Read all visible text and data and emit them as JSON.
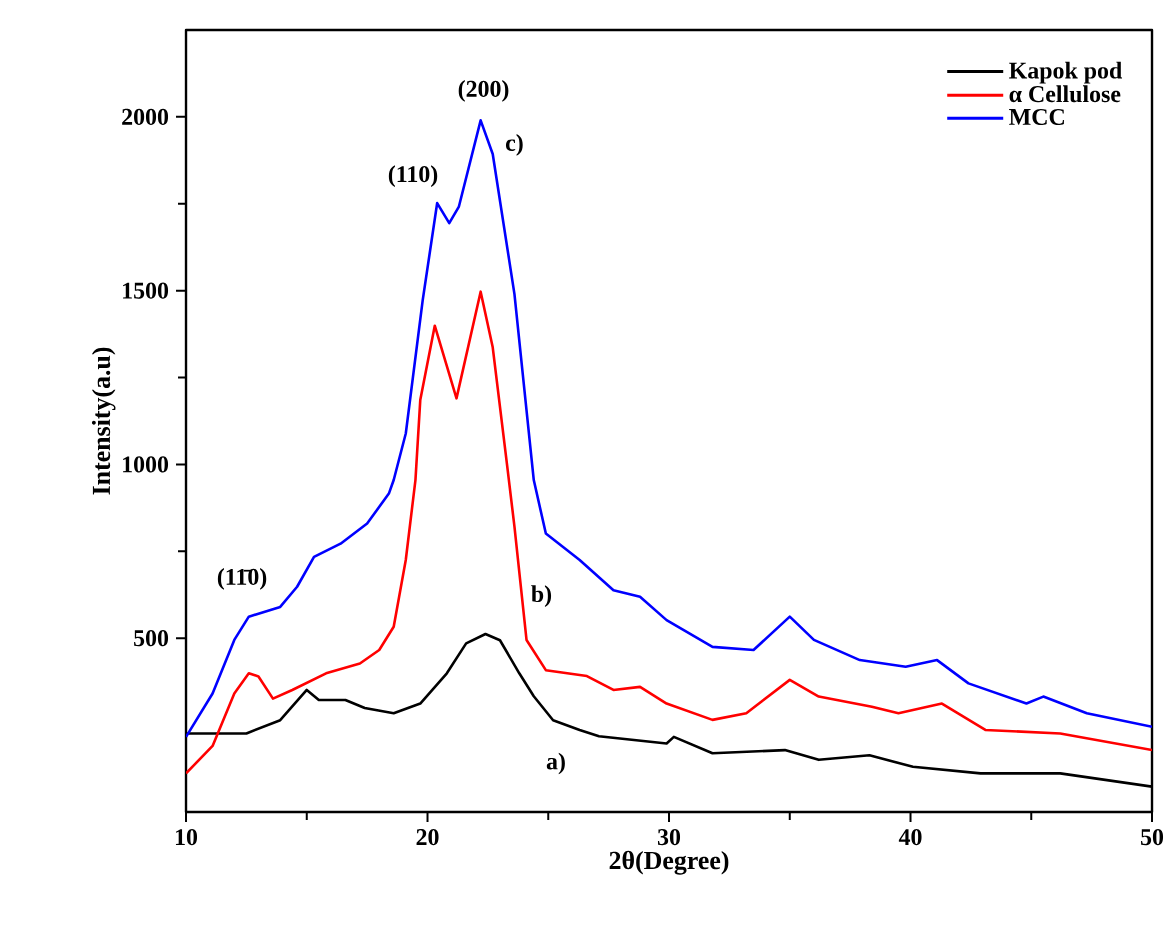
{
  "chart_data": {
    "type": "line",
    "xlabel": "2θ(Degree)",
    "ylabel": "Intensity(a.u)",
    "xlim": [
      10,
      50
    ],
    "ylim": [
      0,
      2250
    ],
    "xticks": [
      10,
      20,
      30,
      40,
      50
    ],
    "yticks": [
      500,
      1000,
      1500,
      2000
    ],
    "legend": "top right",
    "grid": false,
    "marker": "none",
    "line_style": "solid",
    "series": [
      {
        "name": "Kapok pod",
        "color": "#000000",
        "x": [
          10,
          12.5,
          13.9,
          15.0,
          15.5,
          16.6,
          17.4,
          18.6,
          19.7,
          20.8,
          21.6,
          22.4,
          23.0,
          23.8,
          24.4,
          25.2,
          26.3,
          27.1,
          29.9,
          30.2,
          31.8,
          34.8,
          36.2,
          38.3,
          40.1,
          42.9,
          46.2,
          50
        ],
        "values": [
          226,
          226,
          264,
          351,
          322,
          322,
          299,
          284,
          312,
          399,
          485,
          512,
          494,
          399,
          333,
          264,
          236,
          218,
          197,
          216,
          169,
          178,
          150,
          163,
          130,
          111,
          111,
          73
        ]
      },
      {
        "name": "α Cellulose",
        "color": "#ff0000",
        "x": [
          10,
          11.1,
          12.0,
          12.6,
          13.0,
          13.6,
          14.4,
          15.8,
          17.2,
          18.0,
          18.6,
          19.1,
          19.5,
          19.7,
          20.3,
          21.2,
          22.2,
          22.7,
          23.3,
          23.6,
          24.1,
          24.9,
          26.6,
          27.7,
          28.8,
          29.9,
          31.8,
          33.2,
          35.0,
          36.2,
          38.4,
          39.5,
          41.3,
          43.1,
          46.2,
          50
        ],
        "values": [
          111,
          190,
          341,
          399,
          390,
          326,
          351,
          399,
          427,
          466,
          533,
          725,
          955,
          1185,
          1399,
          1190,
          1497,
          1337,
          995,
          821,
          495,
          408,
          391,
          351,
          360,
          312,
          265,
          284,
          380,
          332,
          303,
          284,
          312,
          236,
          226,
          178
        ]
      },
      {
        "name": "MCC",
        "color": "#0000ff",
        "x": [
          10,
          11.1,
          12.0,
          12.6,
          13.9,
          14.6,
          15.3,
          16.4,
          17.5,
          18.4,
          18.6,
          19.1,
          19.8,
          20.4,
          20.9,
          21.3,
          22.2,
          22.7,
          23.6,
          24.4,
          24.9,
          26.3,
          27.7,
          28.8,
          29.9,
          31.8,
          33.5,
          35.0,
          36.0,
          37.9,
          39.8,
          41.1,
          42.4,
          44.8,
          45.5,
          47.3,
          50
        ],
        "values": [
          216,
          341,
          495,
          562,
          590,
          648,
          734,
          772,
          830,
          916,
          955,
          1089,
          1472,
          1752,
          1694,
          1742,
          1990,
          1893,
          1490,
          955,
          801,
          725,
          638,
          619,
          552,
          475,
          466,
          562,
          495,
          437,
          418,
          437,
          370,
          312,
          332,
          284,
          245
        ]
      }
    ],
    "annotations": [
      "(11̄0)",
      "(110)",
      "(200)",
      "c)",
      "b)",
      "a)"
    ]
  }
}
